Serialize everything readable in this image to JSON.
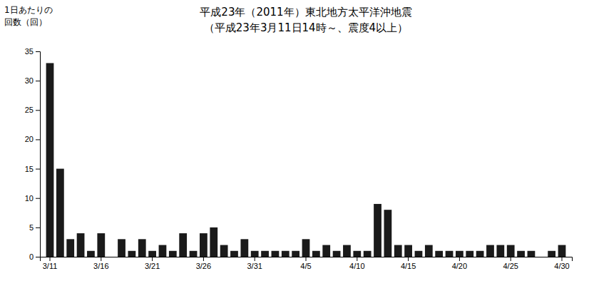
{
  "chart_data": {
    "type": "bar",
    "title": "平成23年（2011年）東北地方太平洋沖地震",
    "subtitle": "（平成23年3月11日14時～、震度4以上）",
    "y_label": [
      "1日あたりの",
      "回数（回）"
    ],
    "categories": [
      "3/11",
      null,
      null,
      null,
      null,
      "3/16",
      null,
      null,
      null,
      null,
      "3/21",
      null,
      null,
      null,
      null,
      "3/26",
      null,
      null,
      null,
      null,
      "3/31",
      null,
      null,
      null,
      null,
      "4/5",
      null,
      null,
      null,
      null,
      "4/10",
      null,
      null,
      null,
      null,
      "4/15",
      null,
      null,
      null,
      null,
      "4/20",
      null,
      null,
      null,
      null,
      "4/25",
      null,
      null,
      null,
      null,
      "4/30"
    ],
    "values": [
      33,
      15,
      3,
      4,
      1,
      4,
      0,
      3,
      1,
      3,
      1,
      2,
      1,
      4,
      1,
      4,
      5,
      2,
      1,
      3,
      1,
      1,
      1,
      1,
      1,
      3,
      1,
      2,
      1,
      2,
      1,
      1,
      9,
      8,
      2,
      2,
      1,
      2,
      1,
      1,
      1,
      1,
      1,
      2,
      2,
      2,
      1,
      1,
      0,
      1,
      2
    ],
    "color": "#1a1a1a",
    "ylim": [
      0,
      35
    ],
    "yticks": [
      0,
      5,
      10,
      15,
      20,
      25,
      30,
      35
    ],
    "grid": false
  }
}
